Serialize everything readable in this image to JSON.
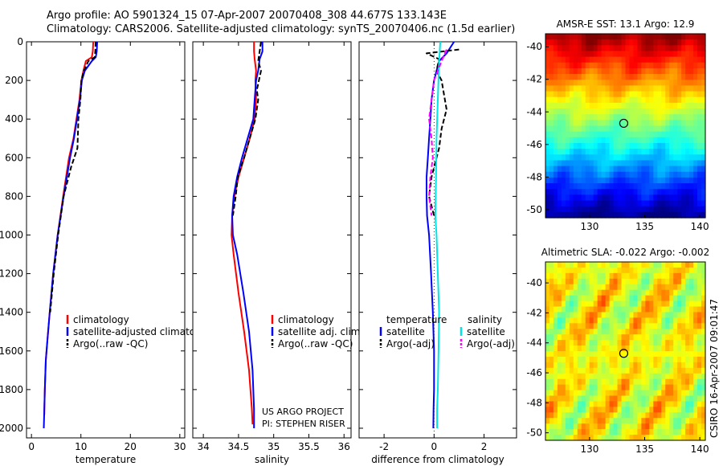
{
  "header": {
    "line1": "Argo profile: AO 5901324_15 07-Apr-2007 20070408_308 44.677S 133.143E",
    "line2": "Climatology: CARS2006. Satellite-adjusted climatology: synTS_20070406.nc (1.5d earlier)"
  },
  "chart_data": [
    {
      "type": "line",
      "name": "temperature profile",
      "xlabel": "temperature",
      "xlim": [
        -1,
        31
      ],
      "ylim": [
        2050,
        0
      ],
      "xticks": [
        0,
        10,
        20,
        30
      ],
      "yticks": [
        0,
        200,
        400,
        600,
        800,
        1000,
        1200,
        1400,
        1600,
        1800,
        2000
      ],
      "legend": [
        "climatology",
        "satellite-adjusted climatology",
        "Argo(..raw -QC)"
      ],
      "legend_loc": "center-right",
      "series": [
        {
          "name": "climatology",
          "color": "#ff0000",
          "style": "solid",
          "x": [
            12.5,
            12.4,
            12.2,
            11.0,
            10.5,
            10.1,
            9.7,
            9.1,
            8.5,
            7.6,
            6.4,
            5.3,
            4.4,
            3.7,
            3.2,
            2.9,
            2.7,
            2.6,
            2.6
          ],
          "y": [
            0,
            50,
            80,
            100,
            150,
            200,
            300,
            400,
            500,
            600,
            800,
            1000,
            1200,
            1400,
            1550,
            1650,
            1800,
            1900,
            1930
          ]
        },
        {
          "name": "satellite-adjusted climatology",
          "color": "#0000ff",
          "style": "solid",
          "x": [
            13.3,
            13.2,
            13.0,
            12.2,
            10.8,
            10.2,
            9.8,
            9.2,
            8.6,
            7.8,
            6.5,
            5.3,
            4.4,
            3.7,
            3.2,
            2.9,
            2.7,
            2.6,
            2.5
          ],
          "y": [
            0,
            50,
            80,
            100,
            150,
            200,
            300,
            400,
            500,
            600,
            800,
            1000,
            1200,
            1400,
            1550,
            1650,
            1800,
            1900,
            2000
          ]
        },
        {
          "name": "Argo(..raw -QC)",
          "color": "#000000",
          "style": "dashed",
          "x": [
            13.0,
            12.9,
            12.8,
            11.5,
            10.6,
            10.1,
            9.9,
            9.5,
            9.3,
            8.0,
            6.5,
            5.4,
            4.5,
            3.8
          ],
          "y": [
            0,
            50,
            80,
            100,
            150,
            200,
            300,
            400,
            550,
            650,
            800,
            1000,
            1200,
            1400
          ]
        }
      ]
    },
    {
      "type": "line",
      "name": "salinity profile",
      "xlabel": "salinity",
      "xlim": [
        33.85,
        36.1
      ],
      "ylim": [
        2050,
        0
      ],
      "xticks": [
        34,
        34.5,
        35,
        35.5,
        36
      ],
      "legend": [
        "climatology",
        "satellite adj. clim.",
        "Argo(..raw -QC)"
      ],
      "legend_loc": "center-right",
      "annotation": [
        "US ARGO PROJECT",
        "PI: STEPHEN RISER"
      ],
      "series": [
        {
          "name": "climatology",
          "color": "#ff0000",
          "style": "solid",
          "x": [
            34.72,
            34.72,
            34.73,
            34.75,
            34.74,
            34.75,
            34.73,
            34.66,
            34.58,
            34.5,
            34.44,
            34.41,
            34.4,
            34.43,
            34.5,
            34.58,
            34.65,
            34.69,
            34.7
          ],
          "y": [
            0,
            50,
            90,
            150,
            200,
            300,
            400,
            500,
            600,
            700,
            800,
            900,
            1000,
            1100,
            1300,
            1500,
            1700,
            1900,
            1980
          ]
        },
        {
          "name": "satellite adj. clim.",
          "color": "#0000ff",
          "style": "solid",
          "x": [
            34.84,
            34.84,
            34.8,
            34.78,
            34.75,
            34.73,
            34.71,
            34.63,
            34.55,
            34.48,
            34.43,
            34.41,
            34.42,
            34.48,
            34.57,
            34.65,
            34.7,
            34.72,
            34.72
          ],
          "y": [
            0,
            50,
            90,
            150,
            200,
            300,
            400,
            500,
            600,
            700,
            800,
            900,
            1000,
            1100,
            1300,
            1500,
            1700,
            1900,
            2000
          ]
        },
        {
          "name": "Argo(..raw -QC)",
          "color": "#000000",
          "style": "dashed",
          "x": [
            34.82,
            34.8,
            34.78,
            34.82,
            34.76,
            34.78,
            34.74,
            34.66,
            34.58,
            34.49,
            34.46,
            34.42
          ],
          "y": [
            0,
            50,
            100,
            150,
            250,
            300,
            400,
            500,
            600,
            700,
            800,
            900
          ]
        }
      ]
    },
    {
      "type": "line",
      "name": "difference from climatology",
      "xlabel": "difference from climatology",
      "xlim": [
        -3,
        3.3
      ],
      "ylim": [
        2050,
        0
      ],
      "xticks": [
        -2,
        0,
        2
      ],
      "legend_temperature_title": "temperature",
      "legend_salinity_title": "salinity",
      "legend_temperature": [
        "satellite",
        "Argo(-adj)"
      ],
      "legend_salinity": [
        "satellite",
        "Argo(-adj)"
      ],
      "series": [
        {
          "name": "temperature satellite",
          "color": "#0000ff",
          "style": "solid",
          "x": [
            0.8,
            0.5,
            0.2,
            0.0,
            -0.1,
            -0.15,
            -0.2,
            -0.25,
            -0.3,
            -0.3,
            -0.28,
            -0.2,
            -0.12,
            -0.05,
            0.0,
            0.0,
            -0.02,
            -0.03
          ],
          "y": [
            0,
            60,
            100,
            200,
            300,
            400,
            500,
            600,
            700,
            800,
            900,
            1000,
            1200,
            1400,
            1600,
            1800,
            1900,
            2000
          ]
        },
        {
          "name": "temperature Argo(-adj)",
          "color": "#000000",
          "style": "dashed",
          "x": [
            1.0,
            -0.3,
            0.2,
            0.1,
            0.3,
            0.5,
            0.3,
            0.2,
            0.0,
            -0.1,
            -0.2,
            0.0
          ],
          "y": [
            40,
            60,
            90,
            150,
            200,
            350,
            450,
            550,
            650,
            700,
            800,
            900
          ]
        },
        {
          "name": "salinity satellite",
          "color": "#00e5e5",
          "style": "solid",
          "x": [
            0.25,
            0.2,
            0.15,
            0.1,
            0.08,
            0.05,
            0.1,
            0.15,
            0.2,
            0.18,
            0.15,
            0.12,
            0.12
          ],
          "y": [
            0,
            100,
            300,
            500,
            700,
            900,
            1000,
            1200,
            1400,
            1600,
            1800,
            1900,
            2000
          ]
        },
        {
          "name": "salinity Argo(-adj)",
          "color": "#ff00ff",
          "style": "dashed",
          "x": [
            0.5,
            0.3,
            0.0,
            -0.1,
            -0.2,
            -0.1,
            -0.05,
            -0.15,
            -0.2,
            -0.1
          ],
          "y": [
            40,
            100,
            200,
            300,
            400,
            500,
            600,
            700,
            800,
            900
          ]
        }
      ]
    },
    {
      "type": "heatmap",
      "name": "AMSR-E SST map",
      "title": "AMSR-E SST: 13.1  Argo: 12.9",
      "xticks": [
        130,
        135,
        140
      ],
      "yticks": [
        -40,
        -42,
        -44,
        -46,
        -48,
        -50
      ],
      "xlim": [
        126,
        140.5
      ],
      "ylim": [
        -50.5,
        -39.2
      ],
      "marker": {
        "lon": 133.1,
        "lat": -44.7
      }
    },
    {
      "type": "heatmap",
      "name": "Altimetric SLA map",
      "title": "Altimetric SLA: -0.022  Argo: -0.002",
      "xticks": [
        130,
        135,
        140
      ],
      "yticks": [
        -40,
        -42,
        -44,
        -46,
        -48,
        -50
      ],
      "xlim": [
        126,
        140.5
      ],
      "ylim": [
        -50.5,
        -38.6
      ],
      "marker": {
        "lon": 133.1,
        "lat": -44.7
      }
    }
  ],
  "side_stamp": "CSIRO 16-Apr-2007 09:01:47"
}
